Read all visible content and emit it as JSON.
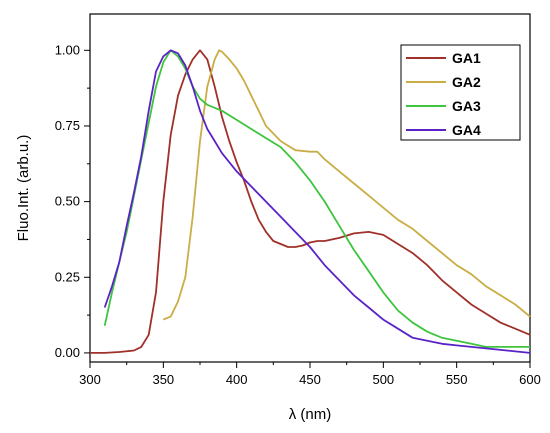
{
  "chart_data": {
    "type": "line",
    "xlabel": "λ (nm)",
    "ylabel": "Fluo.Int. (arb.u.)",
    "xlim": [
      300,
      600
    ],
    "ylim": [
      -0.03,
      1.12
    ],
    "xticks": [
      300,
      350,
      400,
      450,
      500,
      550,
      600
    ],
    "xtick_labels": [
      "300",
      "350",
      "400",
      "450",
      "500",
      "550",
      "600"
    ],
    "yticks": [
      0.0,
      0.25,
      0.5,
      0.75,
      1.0
    ],
    "ytick_labels": [
      "0.00",
      "0.25",
      "0.50",
      "0.75",
      "1.00"
    ],
    "grid": false,
    "legend_position": "top-right",
    "series": [
      {
        "name": "GA1",
        "color": "#a0302a",
        "x": [
          300,
          310,
          320,
          330,
          335,
          340,
          345,
          350,
          355,
          360,
          365,
          370,
          375,
          380,
          385,
          390,
          395,
          400,
          405,
          410,
          415,
          420,
          425,
          430,
          435,
          440,
          445,
          450,
          455,
          460,
          470,
          480,
          490,
          500,
          510,
          520,
          530,
          540,
          550,
          560,
          570,
          580,
          590,
          600
        ],
        "y": [
          0.0,
          0.0,
          0.003,
          0.008,
          0.02,
          0.06,
          0.2,
          0.5,
          0.72,
          0.85,
          0.92,
          0.97,
          1.0,
          0.97,
          0.88,
          0.78,
          0.7,
          0.63,
          0.57,
          0.5,
          0.44,
          0.4,
          0.37,
          0.36,
          0.35,
          0.35,
          0.355,
          0.365,
          0.37,
          0.37,
          0.38,
          0.395,
          0.4,
          0.39,
          0.36,
          0.33,
          0.29,
          0.24,
          0.2,
          0.16,
          0.13,
          0.1,
          0.08,
          0.06
        ]
      },
      {
        "name": "GA2",
        "color": "#c9ad45",
        "x": [
          350,
          355,
          360,
          365,
          370,
          375,
          380,
          385,
          388,
          390,
          395,
          400,
          405,
          410,
          415,
          420,
          430,
          440,
          450,
          455,
          460,
          470,
          480,
          490,
          500,
          510,
          520,
          530,
          540,
          550,
          560,
          570,
          580,
          590,
          600
        ],
        "y": [
          0.11,
          0.12,
          0.17,
          0.25,
          0.45,
          0.7,
          0.88,
          0.97,
          1.0,
          0.995,
          0.97,
          0.94,
          0.9,
          0.85,
          0.8,
          0.75,
          0.7,
          0.67,
          0.665,
          0.665,
          0.64,
          0.6,
          0.56,
          0.52,
          0.48,
          0.44,
          0.41,
          0.37,
          0.33,
          0.29,
          0.26,
          0.22,
          0.19,
          0.16,
          0.12
        ]
      },
      {
        "name": "GA3",
        "color": "#3ec43e",
        "x": [
          310,
          315,
          320,
          325,
          330,
          335,
          340,
          345,
          350,
          355,
          360,
          365,
          370,
          375,
          380,
          385,
          390,
          400,
          410,
          420,
          430,
          440,
          450,
          460,
          470,
          480,
          490,
          500,
          510,
          520,
          530,
          540,
          550,
          560,
          570,
          580,
          590,
          600
        ],
        "y": [
          0.09,
          0.2,
          0.3,
          0.4,
          0.52,
          0.64,
          0.76,
          0.88,
          0.96,
          1.0,
          0.98,
          0.94,
          0.88,
          0.84,
          0.82,
          0.81,
          0.8,
          0.77,
          0.74,
          0.71,
          0.68,
          0.63,
          0.57,
          0.5,
          0.42,
          0.34,
          0.27,
          0.2,
          0.14,
          0.1,
          0.07,
          0.05,
          0.04,
          0.03,
          0.02,
          0.02,
          0.02,
          0.02
        ]
      },
      {
        "name": "GA4",
        "color": "#5a23c8",
        "x": [
          310,
          315,
          320,
          325,
          330,
          335,
          340,
          345,
          350,
          355,
          360,
          365,
          370,
          375,
          380,
          385,
          390,
          400,
          410,
          420,
          430,
          440,
          450,
          460,
          470,
          480,
          490,
          500,
          510,
          520,
          530,
          540,
          550,
          560,
          570,
          580,
          590,
          600
        ],
        "y": [
          0.15,
          0.22,
          0.3,
          0.42,
          0.53,
          0.65,
          0.8,
          0.93,
          0.98,
          1.0,
          0.99,
          0.95,
          0.88,
          0.8,
          0.74,
          0.7,
          0.66,
          0.6,
          0.55,
          0.5,
          0.45,
          0.4,
          0.35,
          0.29,
          0.24,
          0.19,
          0.15,
          0.11,
          0.08,
          0.05,
          0.04,
          0.03,
          0.025,
          0.02,
          0.015,
          0.01,
          0.005,
          0.0
        ]
      }
    ]
  }
}
